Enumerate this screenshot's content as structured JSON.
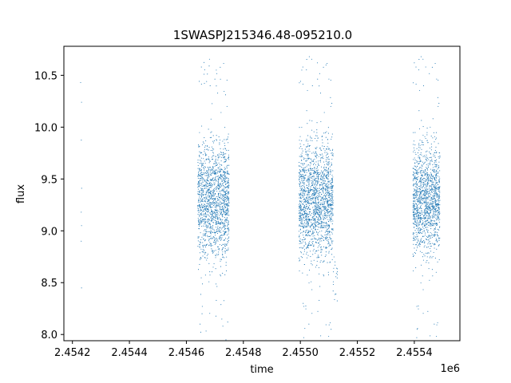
{
  "chart_data": {
    "type": "scatter",
    "title": "1SWASPJ215346.48-095210.0",
    "xlabel": "time",
    "ylabel": "flux",
    "x_offset_label": "1e6",
    "xlim": [
      2454170,
      2455560
    ],
    "ylim": [
      7.94,
      10.78
    ],
    "x_ticks": [
      2454200,
      2454400,
      2454600,
      2454800,
      2455000,
      2455200,
      2455400
    ],
    "x_tick_labels": [
      "2.4542",
      "2.4544",
      "2.4546",
      "2.4548",
      "2.4550",
      "2.4552",
      "2.4554"
    ],
    "y_ticks": [
      8.0,
      8.5,
      9.0,
      9.5,
      10.0,
      10.5
    ],
    "y_tick_labels": [
      "8.0",
      "8.5",
      "9.0",
      "9.5",
      "10.0",
      "10.5"
    ],
    "marker_color": "#1f77b4",
    "grid": false,
    "series": [
      {
        "clusters": [
          {
            "x_range": [
              2454228,
              2454233
            ],
            "center": 9.25,
            "spread": 0.6,
            "count": 4
          },
          {
            "x_range": [
              2454640,
              2454750
            ],
            "center": 9.3,
            "spread": 0.28,
            "count": 1600
          },
          {
            "x_range": [
              2454995,
              2455115
            ],
            "center": 9.3,
            "spread": 0.28,
            "count": 1800
          },
          {
            "x_range": [
              2455115,
              2455130
            ],
            "center": 8.55,
            "spread": 0.12,
            "count": 20
          },
          {
            "x_range": [
              2455395,
              2455490
            ],
            "center": 9.3,
            "spread": 0.26,
            "count": 1400
          }
        ],
        "outliers": [
          [
            2454232,
            10.24
          ],
          [
            2454231,
            8.9
          ],
          [
            2454232,
            9.05
          ],
          [
            2454231,
            9.18
          ],
          [
            2454648,
            8.1
          ],
          [
            2454655,
            8.2
          ],
          [
            2454680,
            10.59
          ],
          [
            2454705,
            10.55
          ],
          [
            2454728,
            8.08
          ],
          [
            2454745,
            8.12
          ],
          [
            2455005,
            10.55
          ],
          [
            2455010,
            8.3
          ],
          [
            2455060,
            10.62
          ],
          [
            2455090,
            10.6
          ],
          [
            2455108,
            8.05
          ],
          [
            2455030,
            8.1
          ],
          [
            2455400,
            10.62
          ],
          [
            2455440,
            10.58
          ],
          [
            2455470,
            8.1
          ],
          [
            2455410,
            8.05
          ]
        ]
      }
    ]
  }
}
